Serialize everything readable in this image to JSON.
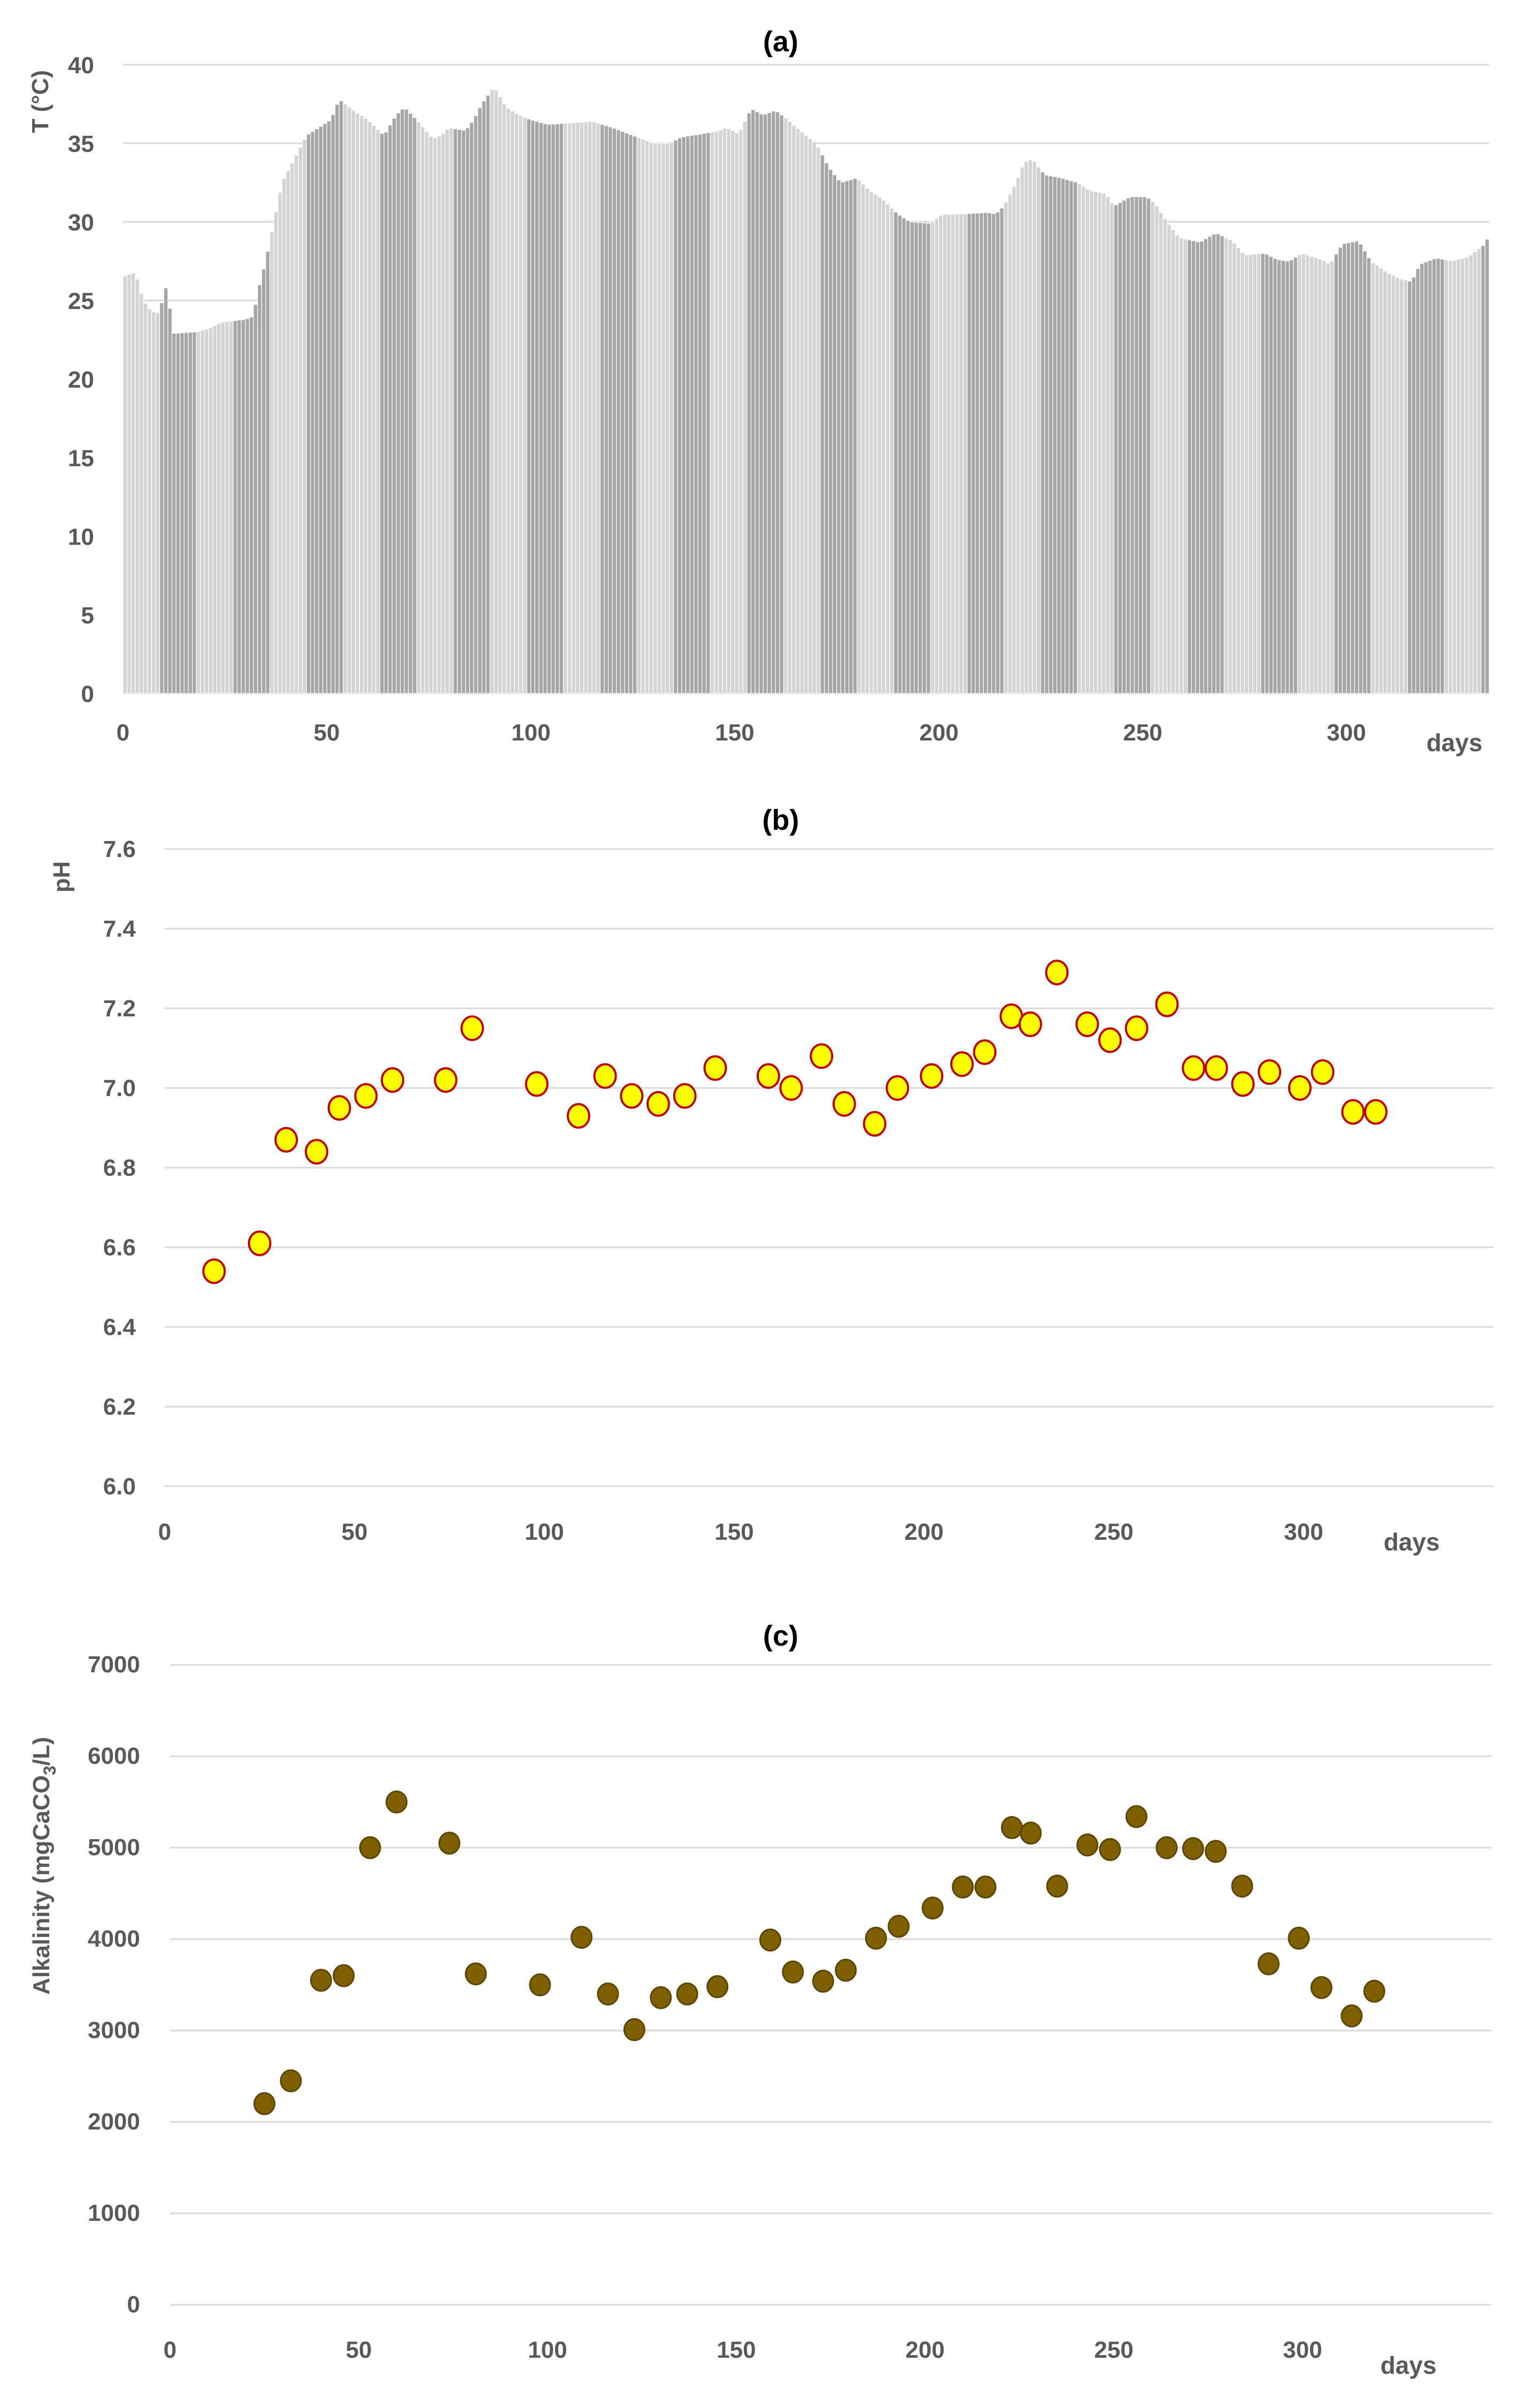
{
  "chart_data": [
    {
      "id": "a",
      "type": "bar",
      "title": "(a)",
      "xlabel": "days",
      "ylabel": "T (°C)",
      "xlim": [
        0,
        335
      ],
      "ylim": [
        0,
        40
      ],
      "xticks": [
        "0",
        "50",
        "100",
        "150",
        "200",
        "250",
        "300"
      ],
      "yticks": [
        "0",
        "5",
        "10",
        "15",
        "20",
        "25",
        "30",
        "35",
        "40"
      ],
      "colors": {
        "bar_light": "#d4d4d4",
        "bar_dark": "#a6a6a6"
      },
      "anchors": [
        [
          0,
          26.5
        ],
        [
          3,
          26.8
        ],
        [
          5,
          25
        ],
        [
          7,
          24.3
        ],
        [
          9,
          24.2
        ],
        [
          10,
          25.5
        ],
        [
          11,
          26.1
        ],
        [
          12,
          22.9
        ],
        [
          18,
          23.0
        ],
        [
          21,
          23.2
        ],
        [
          24,
          23.6
        ],
        [
          30,
          23.8
        ],
        [
          32,
          24.0
        ],
        [
          33,
          25.5
        ],
        [
          35,
          27.5
        ],
        [
          37,
          30
        ],
        [
          39,
          32.5
        ],
        [
          42,
          34
        ],
        [
          45,
          35.5
        ],
        [
          48,
          36
        ],
        [
          51,
          36.5
        ],
        [
          53,
          37.8
        ],
        [
          57,
          37
        ],
        [
          60,
          36.5
        ],
        [
          64,
          35.5
        ],
        [
          67,
          36.8
        ],
        [
          69,
          37.3
        ],
        [
          72,
          36.5
        ],
        [
          76,
          35.3
        ],
        [
          78,
          35.5
        ],
        [
          80,
          36
        ],
        [
          84,
          35.8
        ],
        [
          86,
          36.5
        ],
        [
          88,
          37.5
        ],
        [
          91,
          38.6
        ],
        [
          94,
          37.3
        ],
        [
          97,
          36.8
        ],
        [
          100,
          36.5
        ],
        [
          104,
          36.2
        ],
        [
          110,
          36.3
        ],
        [
          115,
          36.4
        ],
        [
          120,
          36
        ],
        [
          125,
          35.5
        ],
        [
          130,
          35
        ],
        [
          134,
          35
        ],
        [
          137,
          35.4
        ],
        [
          142,
          35.6
        ],
        [
          146,
          35.8
        ],
        [
          148,
          36
        ],
        [
          151,
          35.6
        ],
        [
          154,
          37.2
        ],
        [
          157,
          36.8
        ],
        [
          160,
          37.1
        ],
        [
          163,
          36.5
        ],
        [
          167,
          35.6
        ],
        [
          170,
          35
        ],
        [
          173,
          33.5
        ],
        [
          176,
          32.5
        ],
        [
          180,
          32.8
        ],
        [
          183,
          32
        ],
        [
          186,
          31.5
        ],
        [
          190,
          30.5
        ],
        [
          193,
          30
        ],
        [
          198,
          29.9
        ],
        [
          201,
          30.5
        ],
        [
          206,
          30.5
        ],
        [
          212,
          30.6
        ],
        [
          214,
          30.5
        ],
        [
          216,
          31
        ],
        [
          219,
          32.5
        ],
        [
          221,
          33.8
        ],
        [
          223,
          34
        ],
        [
          226,
          33
        ],
        [
          230,
          32.8
        ],
        [
          234,
          32.5
        ],
        [
          237,
          32
        ],
        [
          241,
          31.8
        ],
        [
          243,
          31
        ],
        [
          247,
          31.6
        ],
        [
          251,
          31.6
        ],
        [
          253,
          31.2
        ],
        [
          256,
          30
        ],
        [
          259,
          29
        ],
        [
          264,
          28.7
        ],
        [
          268,
          29.3
        ],
        [
          272,
          28.8
        ],
        [
          275,
          27.9
        ],
        [
          280,
          28
        ],
        [
          283,
          27.6
        ],
        [
          286,
          27.5
        ],
        [
          289,
          28
        ],
        [
          294,
          27.6
        ],
        [
          296,
          27.3
        ],
        [
          299,
          28.6
        ],
        [
          303,
          28.8
        ],
        [
          306,
          27.5
        ],
        [
          310,
          26.8
        ],
        [
          313,
          26.4
        ],
        [
          316,
          26.2
        ],
        [
          318,
          27.3
        ],
        [
          322,
          27.7
        ],
        [
          326,
          27.5
        ],
        [
          330,
          27.8
        ],
        [
          334,
          28.6
        ],
        [
          335,
          29.2
        ]
      ]
    },
    {
      "id": "b",
      "type": "scatter",
      "title": "(b)",
      "xlabel": "days",
      "ylabel": "pH",
      "xlim": [
        0,
        350
      ],
      "ylim": [
        6.0,
        7.6
      ],
      "xticks": [
        "0",
        "50",
        "100",
        "150",
        "200",
        "250",
        "300"
      ],
      "yticks": [
        "6.0",
        "6.2",
        "6.4",
        "6.6",
        "6.8",
        "7.0",
        "7.2",
        "7.4",
        "7.6"
      ],
      "colors": {
        "marker_fill": "#ffff00",
        "marker_edge": "#c00000"
      },
      "points": [
        [
          13,
          6.54
        ],
        [
          25,
          6.61
        ],
        [
          32,
          6.87
        ],
        [
          40,
          6.84
        ],
        [
          46,
          6.95
        ],
        [
          53,
          6.98
        ],
        [
          60,
          7.02
        ],
        [
          74,
          7.02
        ],
        [
          81,
          7.15
        ],
        [
          98,
          7.01
        ],
        [
          109,
          6.93
        ],
        [
          116,
          7.03
        ],
        [
          123,
          6.98
        ],
        [
          130,
          6.96
        ],
        [
          137,
          6.98
        ],
        [
          145,
          7.05
        ],
        [
          159,
          7.03
        ],
        [
          165,
          7.0
        ],
        [
          173,
          7.08
        ],
        [
          179,
          6.96
        ],
        [
          187,
          6.91
        ],
        [
          193,
          7.0
        ],
        [
          202,
          7.03
        ],
        [
          210,
          7.06
        ],
        [
          216,
          7.09
        ],
        [
          223,
          7.18
        ],
        [
          228,
          7.16
        ],
        [
          235,
          7.29
        ],
        [
          243,
          7.16
        ],
        [
          249,
          7.12
        ],
        [
          256,
          7.15
        ],
        [
          264,
          7.21
        ],
        [
          271,
          7.05
        ],
        [
          277,
          7.05
        ],
        [
          284,
          7.01
        ],
        [
          291,
          7.04
        ],
        [
          299,
          7.0
        ],
        [
          305,
          7.04
        ],
        [
          313,
          6.94
        ],
        [
          319,
          6.94
        ]
      ]
    },
    {
      "id": "c",
      "type": "scatter",
      "title": "(c)",
      "xlabel": "days",
      "ylabel_main": "Alkalinity (mgCaCO",
      "ylabel_sub": "3",
      "ylabel_end": "/L)",
      "xlim": [
        0,
        350
      ],
      "ylim": [
        0,
        7000
      ],
      "xticks": [
        "0",
        "50",
        "100",
        "150",
        "200",
        "250",
        "300"
      ],
      "yticks": [
        "0",
        "1000",
        "2000",
        "3000",
        "4000",
        "5000",
        "6000",
        "7000"
      ],
      "colors": {
        "marker_fill": "#7f6000",
        "marker_edge": "#5c4500"
      },
      "points": [
        [
          25,
          2200
        ],
        [
          32,
          2450
        ],
        [
          40,
          3550
        ],
        [
          46,
          3600
        ],
        [
          53,
          5000
        ],
        [
          60,
          5500
        ],
        [
          74,
          5050
        ],
        [
          81,
          3620
        ],
        [
          98,
          3500
        ],
        [
          109,
          4020
        ],
        [
          116,
          3400
        ],
        [
          123,
          3010
        ],
        [
          130,
          3360
        ],
        [
          137,
          3400
        ],
        [
          145,
          3480
        ],
        [
          159,
          3990
        ],
        [
          165,
          3640
        ],
        [
          173,
          3540
        ],
        [
          179,
          3660
        ],
        [
          187,
          4010
        ],
        [
          193,
          4140
        ],
        [
          202,
          4340
        ],
        [
          210,
          4570
        ],
        [
          216,
          4570
        ],
        [
          223,
          5220
        ],
        [
          228,
          5160
        ],
        [
          235,
          4580
        ],
        [
          243,
          5030
        ],
        [
          249,
          4980
        ],
        [
          256,
          5340
        ],
        [
          264,
          5000
        ],
        [
          271,
          4990
        ],
        [
          277,
          4960
        ],
        [
          284,
          4580
        ],
        [
          291,
          3730
        ],
        [
          299,
          4010
        ],
        [
          305,
          3470
        ],
        [
          313,
          3160
        ],
        [
          319,
          3430
        ]
      ]
    }
  ]
}
